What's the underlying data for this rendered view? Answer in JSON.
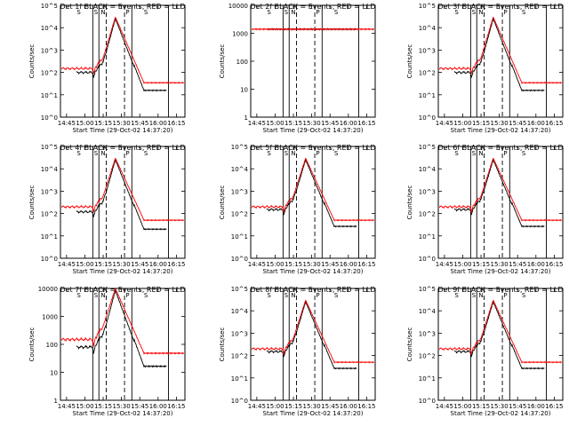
{
  "figure": {
    "line_colors": {
      "events": "#000000",
      "lld": "#ff0000",
      "axes": "#000000",
      "background": "#ffffff"
    },
    "x_ticks": [
      "14:45",
      "15:00",
      "15:15",
      "15:30",
      "15:45",
      "16:00",
      "16:15"
    ],
    "xlabel": "Start Time (29-Oct-02 14:37:20)",
    "ylabel": "Counts/sec",
    "marker_letters": [
      "S",
      "S",
      "N",
      "P",
      "S"
    ]
  },
  "chart_data": [
    {
      "type": "line",
      "title": "Det 1f  BLACK = Events, RED = LLD",
      "yscale": "log",
      "ylim_exp": [
        0,
        5
      ],
      "ytick_labels": [
        "10^0",
        "10^1",
        "10^2",
        "10^3",
        "10^4",
        "10^5"
      ],
      "peak": 30000.0,
      "base_lld": 150,
      "base_events": 100,
      "saturated": false
    },
    {
      "type": "line",
      "title": "Det 2f  BLACK = Events, RED = LLD",
      "yscale": "log",
      "ylim_exp": [
        0,
        4
      ],
      "ytick_labels": [
        "1",
        "10",
        "100",
        "1000",
        "10000"
      ],
      "peak": 1400,
      "base_lld": 1400,
      "base_events": 1400,
      "saturated": true
    },
    {
      "type": "line",
      "title": "Det 3f  BLACK = Events, RED = LLD",
      "yscale": "log",
      "ylim_exp": [
        0,
        5
      ],
      "ytick_labels": [
        "10^0",
        "10^1",
        "10^2",
        "10^3",
        "10^4",
        "10^5"
      ],
      "peak": 30000.0,
      "base_lld": 150,
      "base_events": 100,
      "saturated": false
    },
    {
      "type": "line",
      "title": "Det 4f  BLACK = Events, RED = LLD",
      "yscale": "log",
      "ylim_exp": [
        0,
        5
      ],
      "ytick_labels": [
        "10^0",
        "10^1",
        "10^2",
        "10^3",
        "10^4",
        "10^5"
      ],
      "peak": 30000.0,
      "base_lld": 200,
      "base_events": 120,
      "saturated": false
    },
    {
      "type": "line",
      "title": "Det 5f  BLACK = Events, RED = LLD",
      "yscale": "log",
      "ylim_exp": [
        0,
        5
      ],
      "ytick_labels": [
        "10^0",
        "10^1",
        "10^2",
        "10^3",
        "10^4",
        "10^5"
      ],
      "peak": 30000.0,
      "base_lld": 200,
      "base_events": 150,
      "saturated": false
    },
    {
      "type": "line",
      "title": "Det 6f  BLACK = Events, RED = LLD",
      "yscale": "log",
      "ylim_exp": [
        0,
        5
      ],
      "ytick_labels": [
        "10^0",
        "10^1",
        "10^2",
        "10^3",
        "10^4",
        "10^5"
      ],
      "peak": 30000.0,
      "base_lld": 200,
      "base_events": 150,
      "saturated": false
    },
    {
      "type": "line",
      "title": "Det 7f  BLACK = Events, RED = LLD",
      "yscale": "log",
      "ylim_exp": [
        0,
        4
      ],
      "ytick_labels": [
        "1",
        "10",
        "100",
        "1000",
        "10000"
      ],
      "peak": 10000.0,
      "base_lld": 150,
      "base_events": 80,
      "saturated": false
    },
    {
      "type": "line",
      "title": "Det 8f  BLACK = Events, RED = LLD",
      "yscale": "log",
      "ylim_exp": [
        0,
        5
      ],
      "ytick_labels": [
        "10^0",
        "10^1",
        "10^2",
        "10^3",
        "10^4",
        "10^5"
      ],
      "peak": 30000.0,
      "base_lld": 200,
      "base_events": 150,
      "saturated": false
    },
    {
      "type": "line",
      "title": "Det 9f  BLACK = Events, RED = LLD",
      "yscale": "log",
      "ylim_exp": [
        0,
        5
      ],
      "ytick_labels": [
        "10^0",
        "10^1",
        "10^2",
        "10^3",
        "10^4",
        "10^5"
      ],
      "peak": 30000.0,
      "base_lld": 200,
      "base_events": 150,
      "saturated": false
    }
  ]
}
